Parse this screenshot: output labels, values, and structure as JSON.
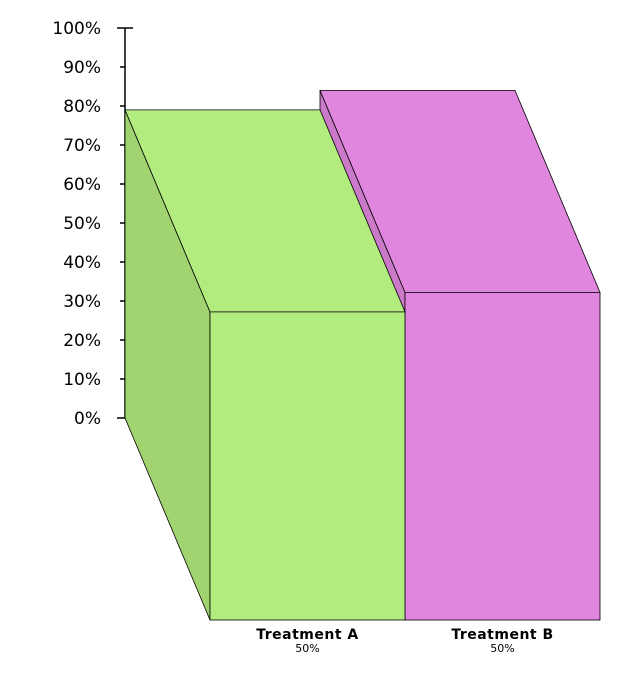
{
  "chart_data": {
    "type": "bar",
    "style": "3d-marimekko",
    "title": "",
    "xlabel": "",
    "ylabel": "",
    "ylim": [
      0,
      100
    ],
    "y_ticks": [
      "0%",
      "10%",
      "20%",
      "30%",
      "40%",
      "50%",
      "60%",
      "70%",
      "80%",
      "90%",
      "100%"
    ],
    "categories": [
      "Treatment A",
      "Treatment B"
    ],
    "widths": [
      "50%",
      "50%"
    ],
    "width_values": [
      50,
      50
    ],
    "values": [
      79,
      84
    ],
    "colors": [
      "#b3ec7e",
      "#e186df"
    ],
    "grid": false
  }
}
